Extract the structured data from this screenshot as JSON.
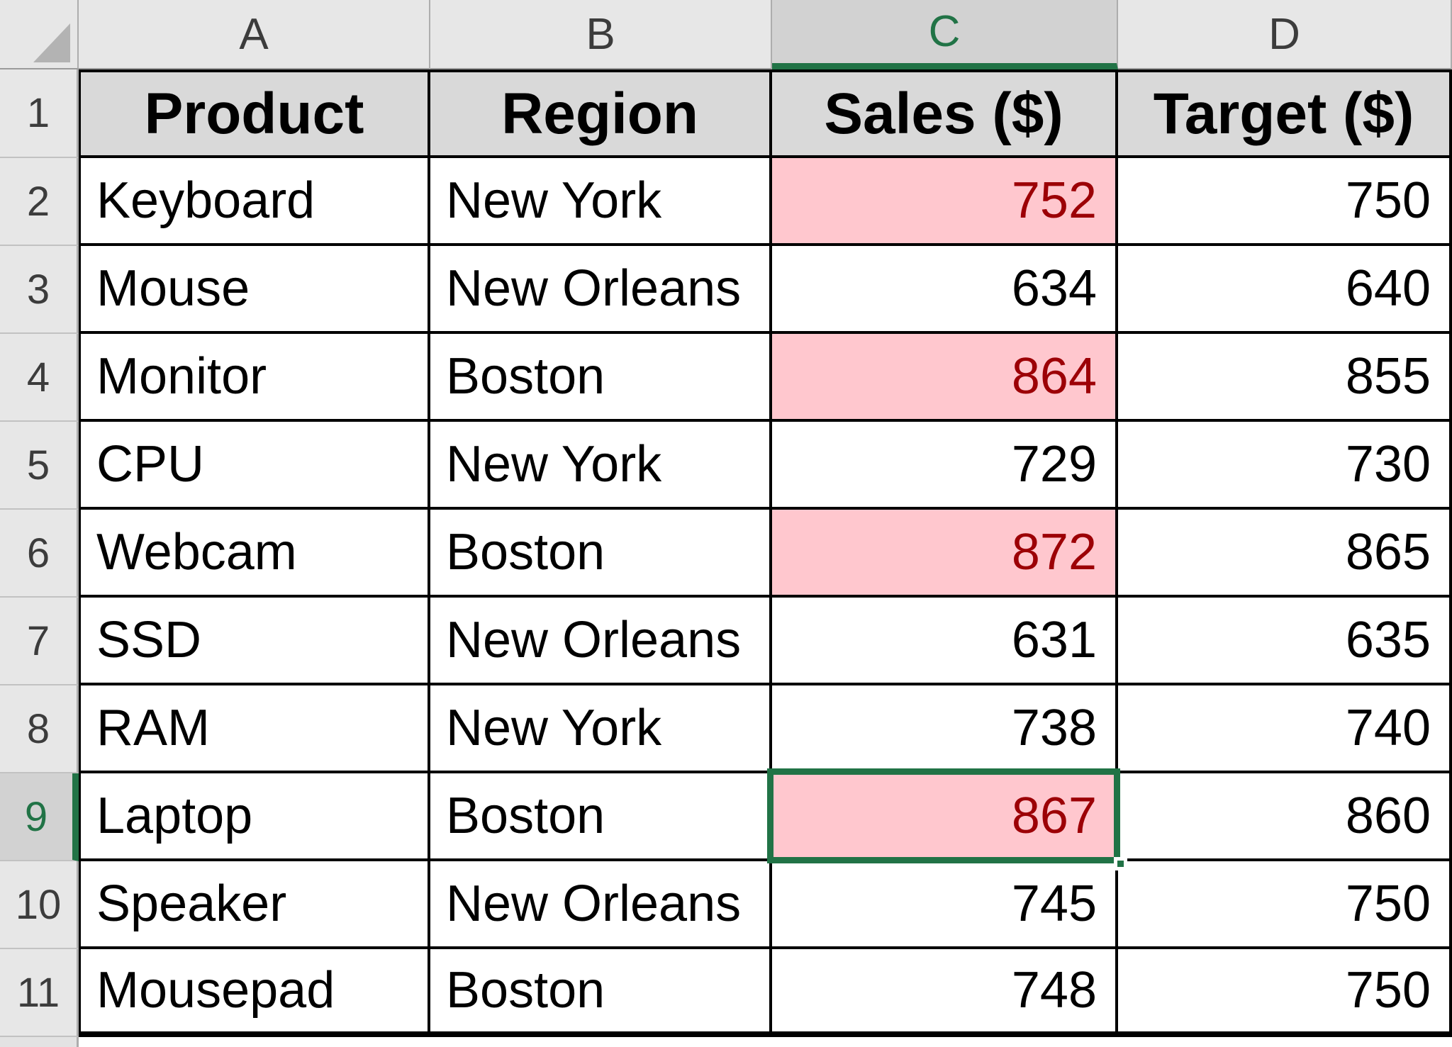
{
  "colors": {
    "selection_green": "#217346",
    "highlight_fill": "#FFC7CE",
    "highlight_text": "#9C0006",
    "header_fill": "#D9D9D9",
    "col_header_bg": "#E7E7E7",
    "col_header_selected_bg": "#D2D2D2"
  },
  "sheet": {
    "columns": [
      {
        "letter": "A"
      },
      {
        "letter": "B"
      },
      {
        "letter": "C"
      },
      {
        "letter": "D"
      }
    ],
    "header_row": {
      "number": "1",
      "cells": [
        "Product",
        "Region",
        "Sales ($)",
        "Target ($)"
      ]
    },
    "data_rows": [
      {
        "number": "2",
        "product": "Keyboard",
        "region": "New York",
        "sales": "752",
        "target": "750",
        "highlight": true
      },
      {
        "number": "3",
        "product": "Mouse",
        "region": "New Orleans",
        "sales": "634",
        "target": "640",
        "highlight": false
      },
      {
        "number": "4",
        "product": "Monitor",
        "region": "Boston",
        "sales": "864",
        "target": "855",
        "highlight": true
      },
      {
        "number": "5",
        "product": "CPU",
        "region": "New York",
        "sales": "729",
        "target": "730",
        "highlight": false
      },
      {
        "number": "6",
        "product": "Webcam",
        "region": "Boston",
        "sales": "872",
        "target": "865",
        "highlight": true
      },
      {
        "number": "7",
        "product": "SSD",
        "region": "New Orleans",
        "sales": "631",
        "target": "635",
        "highlight": false
      },
      {
        "number": "8",
        "product": "RAM",
        "region": "New York",
        "sales": "738",
        "target": "740",
        "highlight": false
      },
      {
        "number": "9",
        "product": "Laptop",
        "region": "Boston",
        "sales": "867",
        "target": "860",
        "highlight": true
      },
      {
        "number": "10",
        "product": "Speaker",
        "region": "New Orleans",
        "sales": "745",
        "target": "750",
        "highlight": false
      },
      {
        "number": "11",
        "product": "Mousepad",
        "region": "Boston",
        "sales": "748",
        "target": "750",
        "highlight": false
      }
    ],
    "selection": {
      "active_cell": "C9",
      "column": "C",
      "row": "9"
    }
  }
}
